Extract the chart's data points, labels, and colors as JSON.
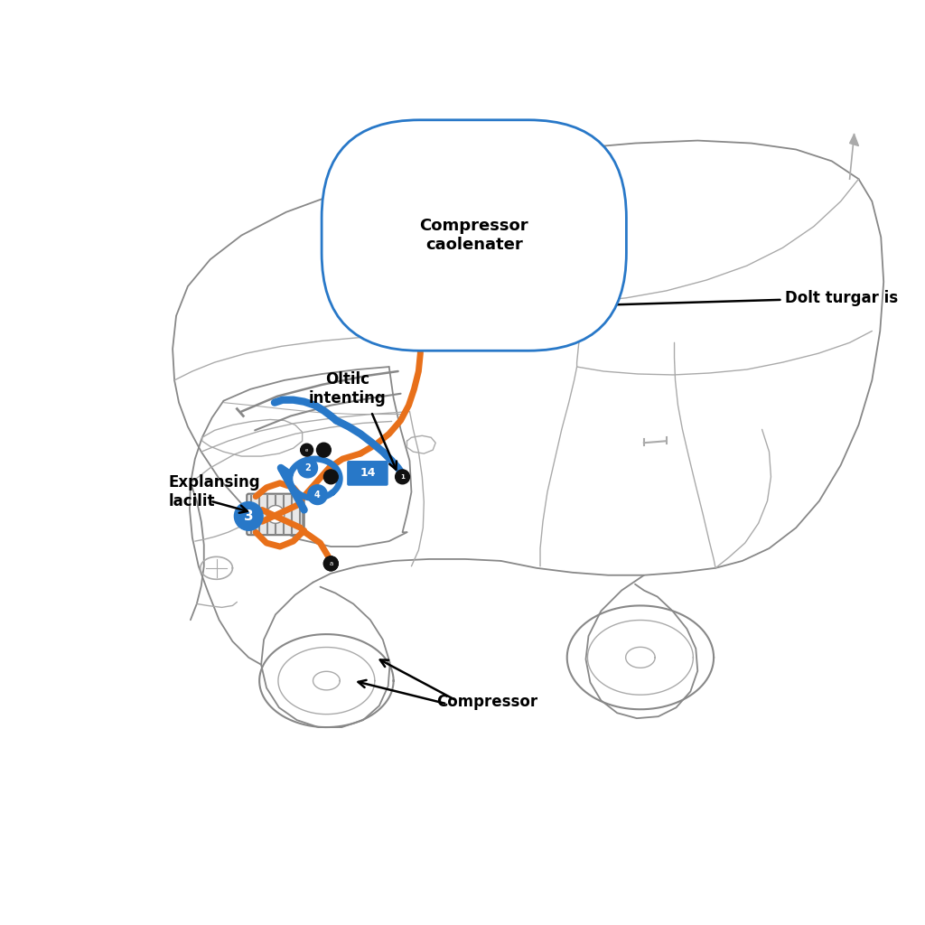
{
  "background_color": "#ffffff",
  "labels": {
    "compressor_condenser": "Compressor\ncaolenater",
    "dolt_turgar": "Dolt turgar is",
    "oltilc_intenting": "Oltilc\nintenting",
    "explansing_lacilit": "Explansing\nlacilit",
    "compressor": "Compressor"
  },
  "orange_color": "#E8701A",
  "blue_color": "#2878C8",
  "car_line_color": "#888888",
  "car_line_lw": 1.3,
  "car_detail_color": "#aaaaaa",
  "car_detail_lw": 1.0
}
